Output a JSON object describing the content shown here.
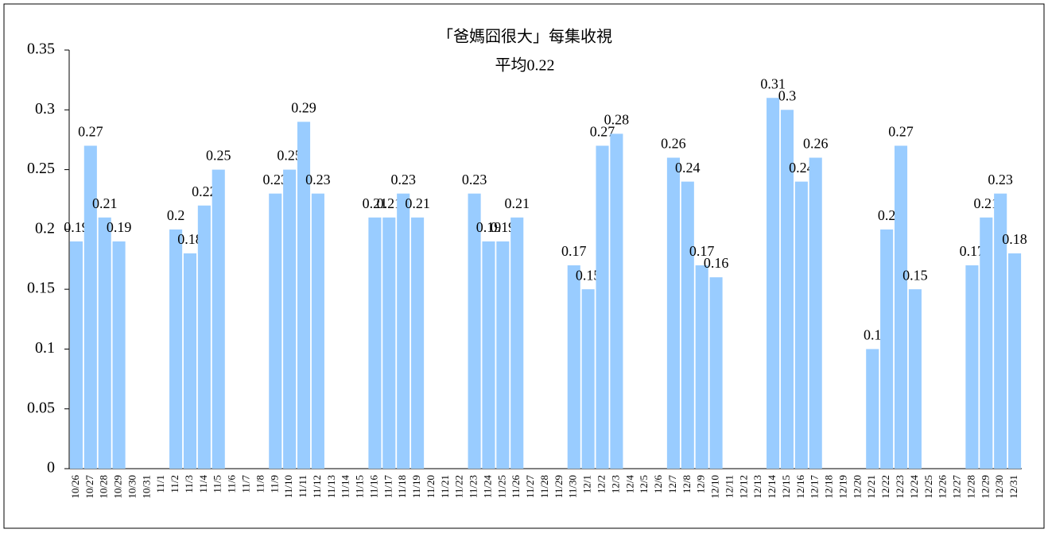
{
  "chart_data": {
    "type": "bar",
    "title": "「爸媽囧很大」每集收視",
    "subtitle": "平均0.22",
    "categories": [
      "10/26",
      "10/27",
      "10/28",
      "10/29",
      "10/30",
      "10/31",
      "11/1",
      "11/2",
      "11/3",
      "11/4",
      "11/5",
      "11/6",
      "11/7",
      "11/8",
      "11/9",
      "11/10",
      "11/11",
      "11/12",
      "11/13",
      "11/14",
      "11/15",
      "11/16",
      "11/17",
      "11/18",
      "11/19",
      "11/20",
      "11/21",
      "11/22",
      "11/23",
      "11/24",
      "11/25",
      "11/26",
      "11/27",
      "11/28",
      "11/29",
      "11/30",
      "12/1",
      "12/2",
      "12/3",
      "12/4",
      "12/5",
      "12/6",
      "12/7",
      "12/8",
      "12/9",
      "12/10",
      "12/11",
      "12/12",
      "12/13",
      "12/14",
      "12/15",
      "12/16",
      "12/17",
      "12/18",
      "12/19",
      "12/20",
      "12/21",
      "12/22",
      "12/23",
      "12/24",
      "12/25",
      "12/26",
      "12/27",
      "12/28",
      "12/29",
      "12/30",
      "12/31"
    ],
    "values": [
      0.19,
      0.27,
      0.21,
      0.19,
      null,
      null,
      null,
      0.2,
      0.18,
      0.22,
      0.25,
      null,
      null,
      null,
      0.23,
      0.25,
      0.29,
      0.23,
      null,
      null,
      null,
      0.21,
      0.21,
      0.23,
      0.21,
      null,
      null,
      null,
      0.23,
      0.19,
      0.19,
      0.21,
      null,
      null,
      null,
      0.17,
      0.15,
      0.27,
      0.28,
      null,
      null,
      null,
      0.26,
      0.24,
      0.17,
      0.16,
      null,
      null,
      null,
      0.31,
      0.3,
      0.24,
      0.26,
      null,
      null,
      null,
      0.1,
      0.2,
      0.27,
      0.15,
      null,
      null,
      null,
      0.17,
      0.21,
      0.23,
      0.18
    ],
    "color": "#99ccff",
    "ylim": [
      0,
      0.35
    ],
    "yticks": [
      0,
      0.05,
      0.1,
      0.15,
      0.2,
      0.25,
      0.3,
      0.35
    ],
    "grid": false
  }
}
